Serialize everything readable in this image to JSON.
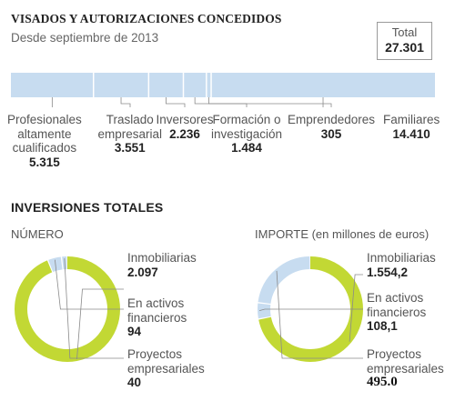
{
  "header": {
    "title": "VISADOS Y AUTORIZACIONES CONCEDIDOS",
    "subtitle": "Desde septiembre de 2013",
    "total_label": "Total",
    "total_value": "27.301"
  },
  "colors": {
    "bar_fill": "#c7dcf0",
    "bar_divider": "#ffffff",
    "leader": "#8a8a8a",
    "donut_green": "#c2d834",
    "donut_blue": "#c7dcf0"
  },
  "chart_data": [
    {
      "type": "bar",
      "orientation": "horizontal-stacked",
      "title": "VISADOS Y AUTORIZACIONES CONCEDIDOS",
      "subtitle": "Desde septiembre de 2013",
      "total": 27301,
      "segments": [
        {
          "name": "Profesionales\naltamente\ncualificados",
          "value": 5315,
          "label": "5.315"
        },
        {
          "name": "Traslado\nempresarial",
          "value": 3551,
          "label": "3.551"
        },
        {
          "name": "Inversores",
          "value": 2236,
          "label": "2.236"
        },
        {
          "name": "Formación o\ninvestigación",
          "value": 1484,
          "label": "1.484"
        },
        {
          "name": "Emprendedores",
          "value": 305,
          "label": "305"
        },
        {
          "name": "Familiares",
          "value": 14410,
          "label": "14.410"
        }
      ]
    },
    {
      "type": "pie",
      "variant": "donut",
      "section_title": "INVERSIONES TOTALES",
      "subtitle": "NÚMERO",
      "slices": [
        {
          "name": "Inmobiliarias",
          "value": 2097,
          "label": "2.097",
          "color": "#c2d834"
        },
        {
          "name": "En activos\nfinancieros",
          "value": 94,
          "label": "94",
          "color": "#c7dcf0"
        },
        {
          "name": "Proyectos\nempresariales",
          "value": 40,
          "label": "40",
          "color": "#c7dcf0"
        }
      ]
    },
    {
      "type": "pie",
      "variant": "donut",
      "subtitle": "IMPORTE (en millones de euros)",
      "slices": [
        {
          "name": "Inmobiliarias",
          "value": 1554.2,
          "label": "1.554,2",
          "color": "#c2d834"
        },
        {
          "name": "En activos\nfinancieros",
          "value": 108.1,
          "label": "108,1",
          "color": "#c7dcf0"
        },
        {
          "name": "Proyectos\nempresariales",
          "value": 495.0,
          "label": "495.0",
          "color": "#c7dcf0"
        }
      ]
    }
  ]
}
